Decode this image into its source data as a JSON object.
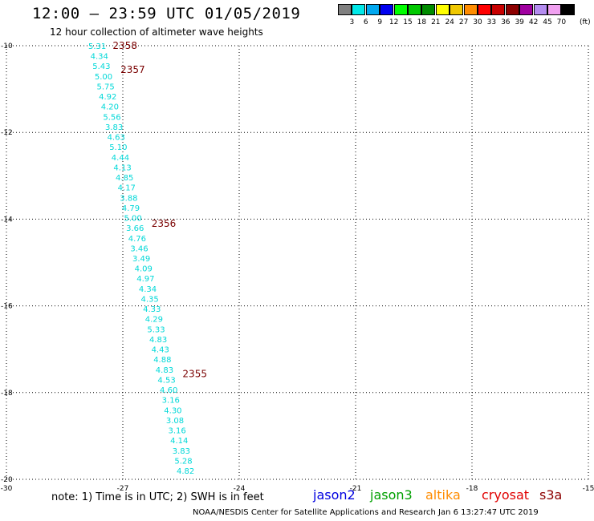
{
  "header": {
    "title": "12:00 — 23:59 UTC 01/05/2019",
    "subtitle": "12 hour collection of altimeter wave heights"
  },
  "color_scale": {
    "colors": [
      "#808080",
      "#00e8e8",
      "#00a8f0",
      "#0000f0",
      "#00ff00",
      "#00c800",
      "#008c00",
      "#ffff00",
      "#f0c800",
      "#ff8c00",
      "#ff0000",
      "#c80000",
      "#8c0000",
      "#a000a0",
      "#b48cf0",
      "#f0a0f0",
      "#000000"
    ],
    "labels": [
      "3",
      "6",
      "9",
      "12",
      "15",
      "18",
      "21",
      "24",
      "27",
      "30",
      "33",
      "36",
      "39",
      "42",
      "45",
      "70"
    ],
    "unit": "(ft)"
  },
  "map": {
    "x_axis": {
      "min": -30,
      "max": -15,
      "ticks": [
        "-30",
        "-27",
        "-24",
        "-21",
        "-18",
        "-15"
      ]
    },
    "y_axis": {
      "min": -20,
      "max": -10,
      "ticks": [
        "-10",
        "-12",
        "-14",
        "-16",
        "-18",
        "-20"
      ]
    },
    "grid": "dotted",
    "track_color": "#00d8d8",
    "time_color": "#7a0000",
    "wave_heights": [
      "5.31",
      "4.34",
      "5.43",
      "5.00",
      "5.75",
      "4.92",
      "4.20",
      "5.56",
      "3.83",
      "4.63",
      "5.10",
      "4.44",
      "4.13",
      "4.85",
      "4.17",
      "3.88",
      "4.79",
      "5.00",
      "3.66",
      "4.76",
      "3.46",
      "3.49",
      "4.09",
      "4.97",
      "4.34",
      "4.35",
      "4.33",
      "4.29",
      "5.33",
      "4.83",
      "4.43",
      "4.88",
      "4.83",
      "4.53",
      "4.60",
      "3.16",
      "4.30",
      "3.08",
      "3.16",
      "4.14",
      "3.83",
      "5.28",
      "4.82"
    ],
    "time_labels": [
      {
        "text": "2358",
        "lon": -27.26,
        "lat": -10.0
      },
      {
        "text": "2357",
        "lon": -27.06,
        "lat": -10.55
      },
      {
        "text": "2356",
        "lon": -26.26,
        "lat": -14.1
      },
      {
        "text": "2355",
        "lon": -25.46,
        "lat": -17.57
      }
    ]
  },
  "footer": {
    "note": "note: 1) Time is in UTC; 2) SWH is in feet",
    "satellites": [
      {
        "name": "jason2",
        "color": "#0000e0"
      },
      {
        "name": "jason3",
        "color": "#00a000"
      },
      {
        "name": "altika",
        "color": "#ff8c00"
      },
      {
        "name": "cryosat",
        "color": "#e00000"
      },
      {
        "name": "s3a",
        "color": "#8c0000"
      }
    ],
    "credit": "NOAA/NESDIS Center for Satellite Applications and Research    Jan  6 13:27:47 UTC 2019"
  }
}
